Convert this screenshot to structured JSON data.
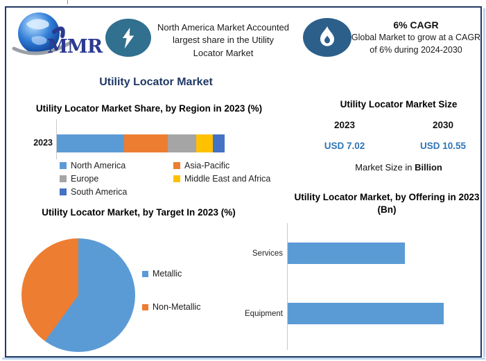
{
  "header": {
    "logo": {
      "text": "MMR",
      "icon": "globe-logo",
      "text_color": "#2B3990"
    },
    "highlight1": {
      "icon": "lightning-bolt",
      "text": "North America Market Accounted largest share in the Utility Locator Market"
    },
    "highlight2": {
      "icon": "flame",
      "title": "6% CAGR",
      "text": "Global Market to grow at a CAGR of 6% during 2024-2030"
    }
  },
  "title": "Utility Locator Market",
  "market_size": {
    "title": "Utility Locator Market Size",
    "years": [
      "2023",
      "2030"
    ],
    "values": [
      "USD 7.02",
      "USD 10.55"
    ],
    "unit_prefix": "Market Size in",
    "unit_bold": "Billion",
    "value_color": "#2E75B6"
  },
  "colors": {
    "accent_navy": "#1F3864",
    "usd_blue": "#2E75B6",
    "bolt_badge": "#31708F",
    "flame_badge": "#2D5F8B",
    "frame_shadow": "#BDD7EE"
  },
  "chart_data": [
    {
      "type": "bar",
      "subtype": "stacked-horizontal",
      "title": "Utility Locator Market Share, by Region in 2023 (%)",
      "categories": [
        "2023"
      ],
      "unit": "%",
      "legend_position": "bottom",
      "grid": false,
      "series": [
        {
          "name": "North America",
          "value": 40,
          "color": "#5B9BD5"
        },
        {
          "name": "Asia-Pacific",
          "value": 26,
          "color": "#ED7D31"
        },
        {
          "name": "Europe",
          "value": 17,
          "color": "#A5A5A5"
        },
        {
          "name": "Middle East and Africa",
          "value": 10,
          "color": "#FFC000"
        },
        {
          "name": "South America",
          "value": 7,
          "color": "#4472C4"
        }
      ]
    },
    {
      "type": "pie",
      "title": "Utility Locator Market, by Target In 2023 (%)",
      "legend_position": "right",
      "start_angle_deg": 0,
      "series": [
        {
          "name": "Metallic",
          "value": 60,
          "color": "#5B9BD5"
        },
        {
          "name": "Non-Metallic",
          "value": 40,
          "color": "#ED7D31"
        }
      ]
    },
    {
      "type": "bar",
      "subtype": "horizontal",
      "title": "Utility Locator Market, by Offering in 2023 (Bn)",
      "categories": [
        "Services",
        "Equipment"
      ],
      "values": [
        3.0,
        4.0
      ],
      "xlim": [
        0,
        4.9
      ],
      "bar_color": "#5B9BD5",
      "grid": false,
      "legend_position": "none"
    }
  ]
}
